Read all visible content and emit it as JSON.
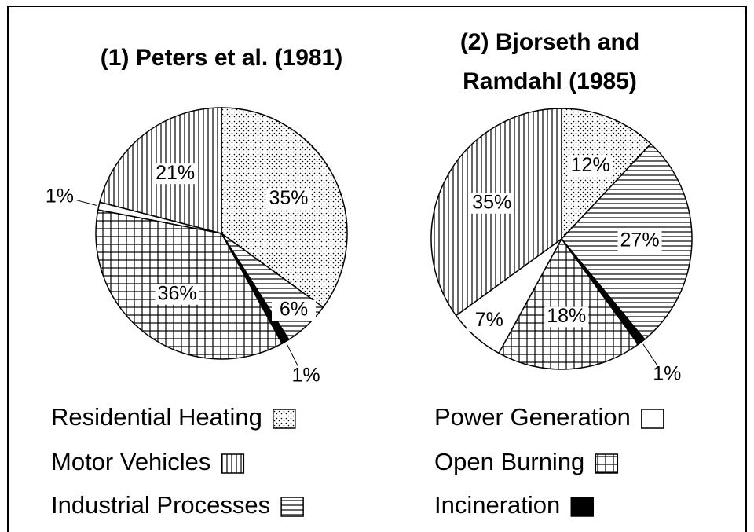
{
  "chart_data": [
    {
      "type": "pie",
      "title": [
        "(1) Peters et al. (1981)"
      ],
      "categories": [
        "Residential Heating",
        "Industrial Processes",
        "Incineration",
        "Open Burning",
        "Power Generation",
        "Motor Vehicles"
      ],
      "values": [
        35,
        6,
        1,
        36,
        1,
        21
      ],
      "value_labels": [
        "35%",
        "6%",
        "1%",
        "36%",
        "1%",
        "21%"
      ]
    },
    {
      "type": "pie",
      "title": [
        "(2) Bjorseth  and",
        "Ramdahl (1985)"
      ],
      "categories": [
        "Residential Heating",
        "Industrial Processes",
        "Incineration",
        "Open Burning",
        "Power Generation",
        "Motor Vehicles"
      ],
      "values": [
        12,
        27,
        1,
        18,
        7,
        35
      ],
      "value_labels": [
        "12%",
        "27%",
        "1%",
        "18%",
        "7%",
        "35%"
      ]
    }
  ],
  "legend": [
    {
      "name": "Residential Heating",
      "pattern": "dots"
    },
    {
      "name": "Motor Vehicles",
      "pattern": "vertical"
    },
    {
      "name": "Industrial Processes",
      "pattern": "horizontal"
    },
    {
      "name": "Power Generation",
      "pattern": "none"
    },
    {
      "name": "Open Burning",
      "pattern": "grid"
    },
    {
      "name": "Incineration",
      "pattern": "solid"
    }
  ]
}
